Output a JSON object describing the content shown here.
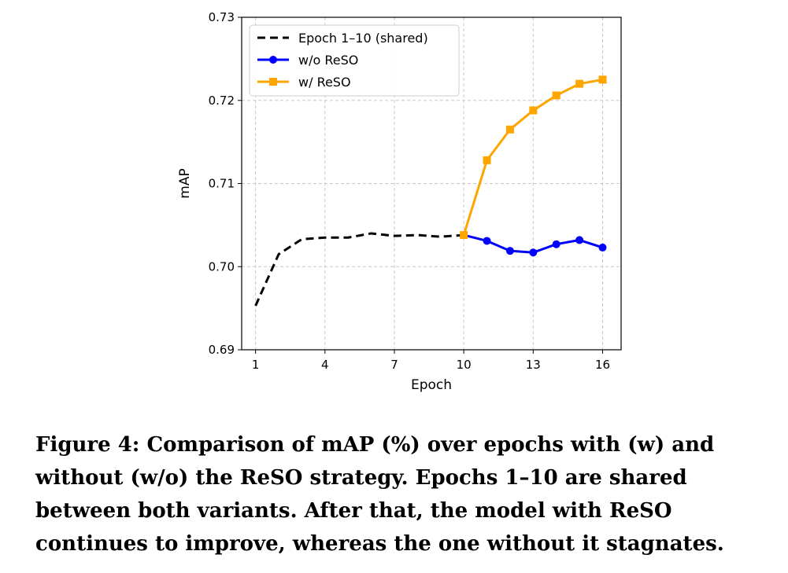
{
  "chart_data": {
    "type": "line",
    "xlabel": "Epoch",
    "ylabel": "mAP",
    "xlim": [
      0.4,
      16.8
    ],
    "ylim": [
      0.69,
      0.73
    ],
    "x_ticks": [
      1,
      4,
      7,
      10,
      13,
      16
    ],
    "y_ticks": [
      0.69,
      0.7,
      0.71,
      0.72,
      0.73
    ],
    "y_tick_labels": [
      "0.69",
      "0.70",
      "0.71",
      "0.72",
      "0.73"
    ],
    "grid": true,
    "legend_position": "top-left",
    "series": [
      {
        "name": "Epoch 1–10 (shared)",
        "color": "#000000",
        "style": "dashed",
        "marker": "none",
        "x": [
          1,
          2,
          3,
          4,
          5,
          6,
          7,
          8,
          9,
          10
        ],
        "y": [
          0.6953,
          0.7015,
          0.7033,
          0.7035,
          0.7035,
          0.704,
          0.7037,
          0.7038,
          0.7036,
          0.7038
        ]
      },
      {
        "name": "w/o ReSO",
        "color": "#0000ff",
        "style": "solid",
        "marker": "circle",
        "x": [
          10,
          11,
          12,
          13,
          14,
          15,
          16
        ],
        "y": [
          0.7038,
          0.7031,
          0.7019,
          0.7017,
          0.7027,
          0.7032,
          0.7023
        ]
      },
      {
        "name": "w/ ReSO",
        "color": "#ffa500",
        "style": "solid",
        "marker": "square",
        "x": [
          10,
          11,
          12,
          13,
          14,
          15,
          16
        ],
        "y": [
          0.7038,
          0.7128,
          0.7165,
          0.7188,
          0.7206,
          0.722,
          0.7225
        ]
      }
    ]
  },
  "caption": "Figure 4: Comparison of mAP (%) over epochs with (w) and without (w/o) the ReSO strategy. Epochs 1–10 are shared between both variants. After that, the model with ReSO continues to improve, whereas the one without it stagnates."
}
